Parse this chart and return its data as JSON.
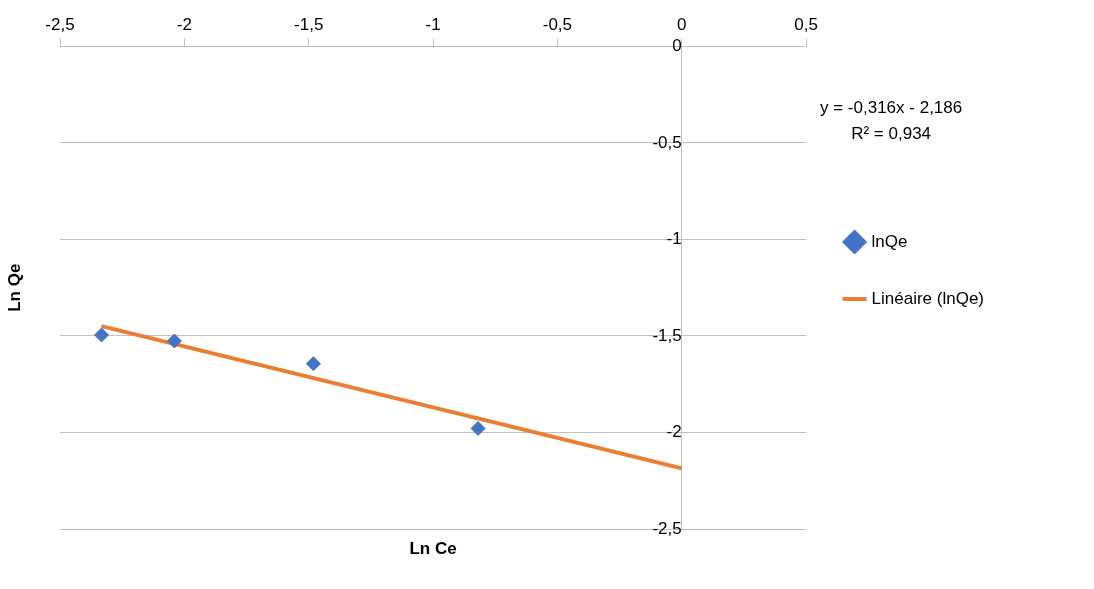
{
  "chart_data": {
    "type": "scatter",
    "xlabel": "Ln Ce",
    "ylabel": "Ln Qe",
    "series": [
      {
        "name": "lnQe",
        "color": "#4472c4",
        "marker": "diamond",
        "x": [
          -2.333,
          -2.04,
          -1.481,
          -0.819
        ],
        "values": [
          -1.495,
          -1.526,
          -1.644,
          -1.979
        ]
      },
      {
        "name": "Linéaire (lnQe)",
        "type": "line",
        "color": "#ed7d31",
        "marker": "none",
        "x": [
          -2.333,
          0
        ],
        "values": [
          -1.449,
          -2.186
        ]
      }
    ],
    "xlim": [
      -2.5,
      0.5
    ],
    "xticks": [
      {
        "value": -2.5,
        "label": "-2,5"
      },
      -2,
      {
        "value": -1.5,
        "label": "-1,5"
      },
      -1,
      {
        "value": -0.5,
        "label": "-0,5"
      },
      0,
      {
        "value": 0.5,
        "label": "0,5"
      }
    ],
    "ylim": [
      -2.5,
      0
    ],
    "yticks": [
      {
        "value": -2.5,
        "label": "-2,5"
      },
      -2,
      {
        "value": -1.5,
        "label": "-1,5"
      },
      -1,
      {
        "value": -0.5,
        "label": "-0,5"
      },
      0
    ],
    "grid": "y",
    "legend": "right",
    "annotations": [
      "y = -0,316x - 2,186",
      "R² = 0,934"
    ]
  }
}
